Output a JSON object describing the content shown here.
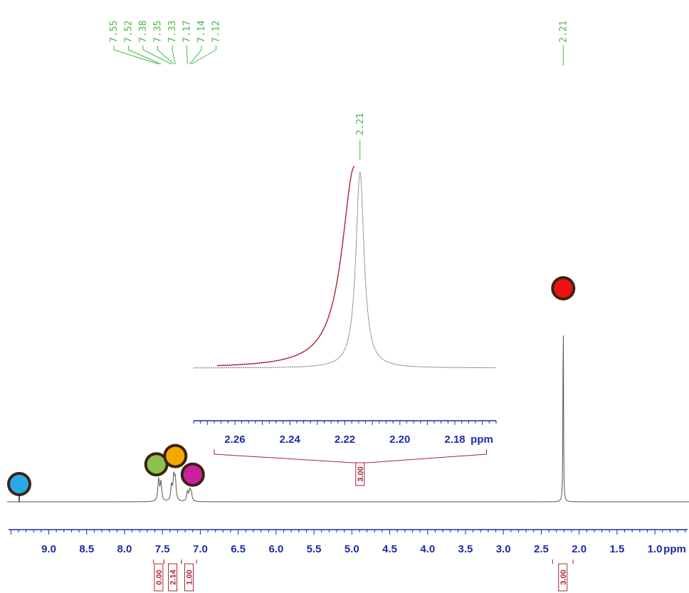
{
  "colors": {
    "peak_label": "#44b844",
    "axis": "#1c2ba8",
    "integral": "#a8252f",
    "trace": "#555555",
    "zoom_overlay": "#a8252f",
    "marker_outline": "#3a2410"
  },
  "chart_data": [
    {
      "type": "line",
      "description_role": "main 1H NMR spectrum",
      "xlabel": "ppm",
      "x_reversed": true,
      "xlim": [
        9.55,
        0.55
      ],
      "ylim": [
        0,
        1
      ],
      "tick_labels": [
        "9.0",
        "8.5",
        "8.0",
        "7.5",
        "7.0",
        "6.5",
        "6.0",
        "5.5",
        "5.0",
        "4.5",
        "4.0",
        "3.5",
        "3.0",
        "2.5",
        "2.0",
        "1.5",
        "1.0"
      ],
      "tick_values": [
        9.0,
        8.5,
        8.0,
        7.5,
        7.0,
        6.5,
        6.0,
        5.5,
        5.0,
        4.5,
        4.0,
        3.5,
        3.0,
        2.5,
        2.0,
        1.5,
        1.0
      ],
      "peaks": [
        {
          "ppm": 7.55,
          "height": 0.105
        },
        {
          "ppm": 7.52,
          "height": 0.09
        },
        {
          "ppm": 7.38,
          "height": 0.07
        },
        {
          "ppm": 7.35,
          "height": 0.11
        },
        {
          "ppm": 7.33,
          "height": 0.095
        },
        {
          "ppm": 7.17,
          "height": 0.045
        },
        {
          "ppm": 7.14,
          "height": 0.05
        },
        {
          "ppm": 7.12,
          "height": 0.04
        },
        {
          "ppm": 2.21,
          "height": 0.98
        }
      ],
      "peak_labels_group1": [
        "7.55",
        "7.52",
        "7.38",
        "7.35",
        "7.33",
        "7.17",
        "7.14",
        "7.12"
      ],
      "peak_labels_group2": [
        "2.21"
      ],
      "integrals": [
        {
          "from": 7.62,
          "to": 7.48,
          "value": "0.00"
        },
        {
          "from": 7.48,
          "to": 7.25,
          "value": "2.14"
        },
        {
          "from": 7.25,
          "to": 7.05,
          "value": "1.00"
        },
        {
          "from": 2.35,
          "to": 2.08,
          "value": "3.00"
        }
      ],
      "markers": [
        {
          "ppm": 9.55,
          "level": 0.0,
          "color": "#29a9e6",
          "shape": "circle-on-stem"
        },
        {
          "ppm": 7.58,
          "level": 0.12,
          "color": "#8bc34a",
          "shape": "circle"
        },
        {
          "ppm": 7.33,
          "level": 0.16,
          "color": "#f6a800",
          "shape": "circle"
        },
        {
          "ppm": 7.1,
          "level": 0.07,
          "color": "#cc1fa0",
          "shape": "circle"
        },
        {
          "ppm": 2.21,
          "level": 1.0,
          "color": "#ee1111",
          "shape": "circle"
        }
      ]
    },
    {
      "type": "line",
      "description_role": "expanded inset of 2.21 ppm singlet",
      "xlabel": "ppm",
      "x_reversed": true,
      "xlim": [
        2.275,
        2.165
      ],
      "tick_labels": [
        "2.26",
        "2.24",
        "2.22",
        "2.20",
        "2.18"
      ],
      "tick_values": [
        2.26,
        2.24,
        2.22,
        2.2,
        2.18
      ],
      "peak_label": "2.21",
      "peak_center": 2.2145,
      "series": [
        {
          "role": "reference trace",
          "center": 2.2145,
          "width": 0.0018,
          "height": 1.0
        },
        {
          "role": "overlay trace",
          "center": 2.2165,
          "width": 0.0055,
          "height": 1.03,
          "cutoff": 2.2165
        }
      ],
      "integral": {
        "from": 2.2675,
        "to": 2.1685,
        "value": "3.00"
      }
    }
  ]
}
